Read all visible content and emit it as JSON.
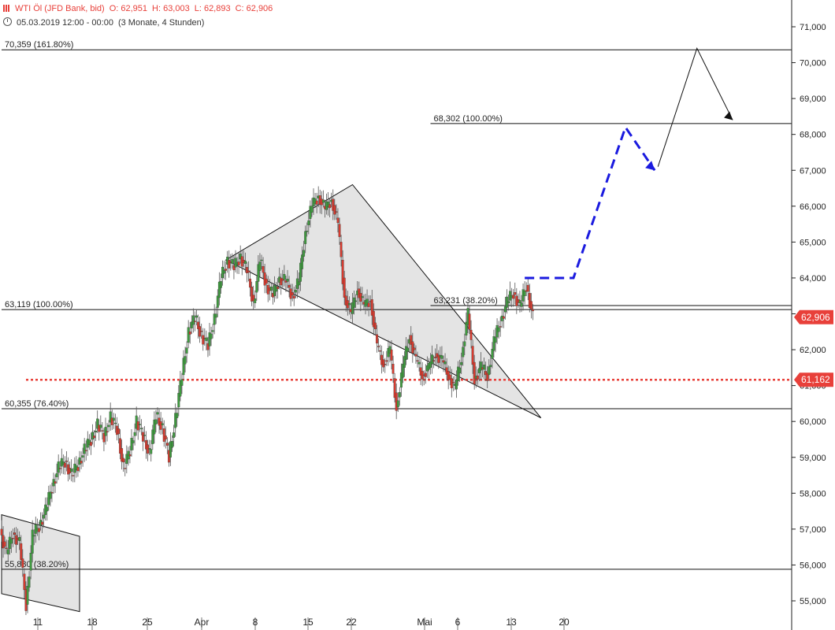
{
  "header": {
    "symbol": "WTI Öl (JFD Bank, bid)",
    "open": "O: 62,951",
    "high": "H: 63,003",
    "low": "L: 62,893",
    "close": "C: 62,906",
    "datetime": "05.03.2019 12:00 - 00:00",
    "range": "(3 Monate, 4 Stunden)"
  },
  "chart_data": {
    "type": "candlestick",
    "ylim": [
      54.6,
      71.6
    ],
    "y_ticks": [
      "55,000",
      "56,000",
      "57,000",
      "58,000",
      "59,000",
      "60,000",
      "61,000",
      "62,000",
      "63,000",
      "64,000",
      "65,000",
      "66,000",
      "67,000",
      "68,000",
      "69,000",
      "70,000",
      "71,000"
    ],
    "y_tick_values": [
      55,
      56,
      57,
      58,
      59,
      60,
      61,
      62,
      63,
      64,
      65,
      66,
      67,
      68,
      69,
      70,
      71
    ],
    "x_ticks": [
      "11",
      "18",
      "25",
      "Apr",
      "8",
      "15",
      "22",
      "Mai",
      "6",
      "13",
      "20"
    ],
    "x_tick_days": [
      10,
      17,
      24,
      31,
      38,
      45,
      52,
      61,
      66,
      73,
      80
    ],
    "price_points": [
      [
        0,
        57.0
      ],
      [
        1,
        56.3
      ],
      [
        2,
        56.9
      ],
      [
        3,
        56.6
      ],
      [
        4,
        54.9
      ],
      [
        5,
        56.8
      ],
      [
        6,
        57.1
      ],
      [
        7,
        57.5
      ],
      [
        8,
        58.2
      ],
      [
        9,
        58.7
      ],
      [
        10,
        58.9
      ],
      [
        11,
        58.5
      ],
      [
        12,
        58.8
      ],
      [
        13,
        59.2
      ],
      [
        14,
        59.5
      ],
      [
        15,
        59.9
      ],
      [
        16,
        59.6
      ],
      [
        17,
        60.1
      ],
      [
        18,
        59.8
      ],
      [
        19,
        58.7
      ],
      [
        20,
        59.2
      ],
      [
        21,
        60.0
      ],
      [
        22,
        59.6
      ],
      [
        23,
        59.1
      ],
      [
        24,
        60.2
      ],
      [
        25,
        59.8
      ],
      [
        26,
        59.0
      ],
      [
        27,
        60.1
      ],
      [
        28,
        61.3
      ],
      [
        29,
        62.5
      ],
      [
        30,
        62.9
      ],
      [
        31,
        62.4
      ],
      [
        32,
        62.1
      ],
      [
        33,
        62.9
      ],
      [
        34,
        64.0
      ],
      [
        35,
        64.5
      ],
      [
        36,
        64.3
      ],
      [
        37,
        64.6
      ],
      [
        38,
        64.2
      ],
      [
        39,
        63.3
      ],
      [
        40,
        64.5
      ],
      [
        41,
        63.8
      ],
      [
        42,
        63.5
      ],
      [
        43,
        64.0
      ],
      [
        44,
        63.9
      ],
      [
        45,
        63.5
      ],
      [
        46,
        63.9
      ],
      [
        47,
        65.3
      ],
      [
        48,
        66.0
      ],
      [
        49,
        66.3
      ],
      [
        50,
        65.9
      ],
      [
        51,
        66.2
      ],
      [
        52,
        65.5
      ],
      [
        53,
        63.5
      ],
      [
        54,
        63.0
      ],
      [
        55,
        63.7
      ],
      [
        56,
        63.2
      ],
      [
        57,
        63.4
      ],
      [
        58,
        62.1
      ],
      [
        59,
        61.6
      ],
      [
        60,
        62.0
      ],
      [
        61,
        60.4
      ],
      [
        62,
        61.5
      ],
      [
        63,
        62.4
      ],
      [
        64,
        61.7
      ],
      [
        65,
        61.3
      ],
      [
        66,
        61.5
      ],
      [
        67,
        61.9
      ],
      [
        68,
        61.7
      ],
      [
        69,
        61.3
      ],
      [
        70,
        60.9
      ],
      [
        71,
        61.8
      ],
      [
        72,
        63.0
      ],
      [
        73,
        61.2
      ],
      [
        74,
        61.5
      ],
      [
        75,
        61.3
      ],
      [
        76,
        62.2
      ],
      [
        77,
        62.8
      ],
      [
        78,
        63.3
      ],
      [
        79,
        63.6
      ],
      [
        80,
        63.2
      ],
      [
        81,
        63.8
      ],
      [
        82,
        62.9
      ]
    ],
    "price_colors": {
      "up": "#3f9b3f",
      "down": "#d63b2f"
    },
    "horizontal_levels": [
      {
        "value": 70.359,
        "label": "70,359 (161.80%)",
        "from_day": 0
      },
      {
        "value": 68.302,
        "label": "68,302 (100.00%)",
        "from_day": 66
      },
      {
        "value": 63.231,
        "label": "63,231 (38.20%)",
        "from_day": 66
      },
      {
        "value": 63.119,
        "label": "63,119 (100.00%)",
        "from_day": 0
      },
      {
        "value": 60.355,
        "label": "60,355 (76.40%)",
        "from_day": 0
      },
      {
        "value": 55.88,
        "label": "55,880 (38.20%)",
        "from_day": 0
      }
    ],
    "support_level": {
      "value": 61.162,
      "label": "61,162",
      "color": "#e8403a"
    },
    "last_price": {
      "value": 62.906,
      "label": "62,906",
      "color": "#e8403a"
    },
    "triangle": [
      [
        34.5,
        64.5
      ],
      [
        54,
        66.6
      ],
      [
        83,
        60.1
      ]
    ],
    "lower_channel": [
      [
        0,
        57.4
      ],
      [
        12,
        56.8
      ],
      [
        12,
        54.7
      ],
      [
        0,
        55.2
      ]
    ],
    "projection_blue": [
      [
        80.5,
        64.0
      ],
      [
        88,
        64.0
      ],
      [
        96,
        68.2
      ],
      [
        100.5,
        67.0
      ]
    ],
    "projection_black": [
      [
        101,
        67.1
      ],
      [
        107,
        70.4
      ],
      [
        112.5,
        68.4
      ]
    ],
    "colors": {
      "fill": "#e4e4e4",
      "projection_blue": "#1a1adf",
      "line": "#111111"
    }
  }
}
